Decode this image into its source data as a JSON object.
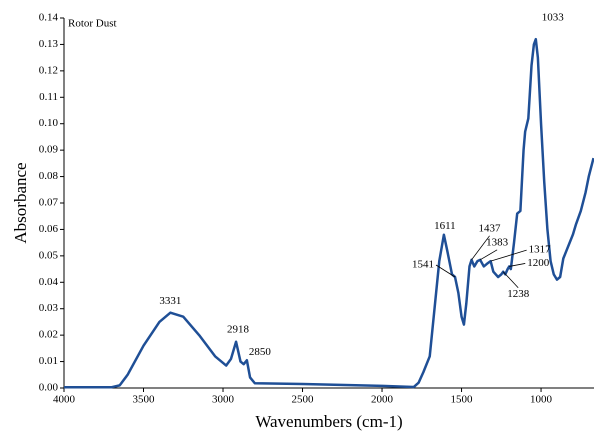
{
  "chart_data": {
    "type": "line",
    "title": "Rotor Dust",
    "x_label": "Wavenumbers (cm-1)",
    "y_label": "Absorbance",
    "xlim": [
      4000,
      667
    ],
    "ylim": [
      0,
      0.14
    ],
    "xticks": [
      4000,
      3500,
      3000,
      2500,
      2000,
      1500,
      1000
    ],
    "yticks": [
      {
        "value": 0,
        "label": "0.00"
      },
      {
        "value": 0.01,
        "label": "0.01"
      },
      {
        "value": 0.02,
        "label": "0.02"
      },
      {
        "value": 0.03,
        "label": "0.03"
      },
      {
        "value": 0.04,
        "label": "0.04"
      },
      {
        "value": 0.05,
        "label": "0.05"
      },
      {
        "value": 0.06,
        "label": "0.06"
      },
      {
        "value": 0.07,
        "label": "0.07"
      },
      {
        "value": 0.08,
        "label": "0.08"
      },
      {
        "value": 0.09,
        "label": "0.09"
      },
      {
        "value": 0.1,
        "label": "0.10"
      },
      {
        "value": 0.11,
        "label": "0.11"
      },
      {
        "value": 0.12,
        "label": "0.12"
      },
      {
        "value": 0.13,
        "label": "0.13"
      },
      {
        "value": 0.14,
        "label": "0.14"
      }
    ],
    "series": [
      {
        "color": "#1f4f96",
        "x": [
          4000,
          3700,
          3650,
          3600,
          3500,
          3400,
          3331,
          3250,
          3150,
          3050,
          2980,
          2950,
          2918,
          2890,
          2870,
          2850,
          2830,
          2800,
          2500,
          2000,
          1800,
          1770,
          1740,
          1700,
          1670,
          1640,
          1611,
          1590,
          1560,
          1541,
          1520,
          1500,
          1485,
          1470,
          1450,
          1437,
          1420,
          1400,
          1383,
          1360,
          1340,
          1317,
          1300,
          1270,
          1250,
          1238,
          1225,
          1210,
          1200,
          1190,
          1170,
          1150,
          1130,
          1110,
          1100,
          1080,
          1060,
          1045,
          1033,
          1020,
          1000,
          980,
          960,
          940,
          920,
          900,
          880,
          860,
          840,
          820,
          800,
          780,
          750,
          720,
          700,
          670
        ],
        "values": [
          0.0003,
          0.0003,
          0.001,
          0.005,
          0.016,
          0.025,
          0.0285,
          0.027,
          0.02,
          0.012,
          0.0085,
          0.011,
          0.0175,
          0.01,
          0.009,
          0.0105,
          0.004,
          0.0018,
          0.0015,
          0.0008,
          0.0004,
          0.002,
          0.006,
          0.012,
          0.03,
          0.048,
          0.058,
          0.052,
          0.043,
          0.042,
          0.036,
          0.027,
          0.024,
          0.032,
          0.046,
          0.0485,
          0.046,
          0.048,
          0.0485,
          0.046,
          0.047,
          0.048,
          0.044,
          0.042,
          0.043,
          0.044,
          0.043,
          0.045,
          0.046,
          0.045,
          0.055,
          0.066,
          0.067,
          0.09,
          0.097,
          0.102,
          0.122,
          0.13,
          0.132,
          0.125,
          0.1,
          0.078,
          0.06,
          0.048,
          0.043,
          0.041,
          0.042,
          0.049,
          0.052,
          0.055,
          0.058,
          0.062,
          0.067,
          0.074,
          0.08,
          0.087
        ]
      }
    ],
    "annotations": [
      {
        "text": "3331",
        "x": 3331,
        "y": 0.0285
      },
      {
        "text": "2918",
        "x": 2918,
        "y": 0.0175
      },
      {
        "text": "2850",
        "x": 2850,
        "y": 0.0105
      },
      {
        "text": "1611",
        "x": 1611,
        "y": 0.058
      },
      {
        "text": "1541",
        "x": 1541,
        "y": 0.042
      },
      {
        "text": "1437",
        "x": 1437,
        "y": 0.0485
      },
      {
        "text": "1383",
        "x": 1383,
        "y": 0.0485
      },
      {
        "text": "1317",
        "x": 1317,
        "y": 0.048
      },
      {
        "text": "1200",
        "x": 1200,
        "y": 0.046
      },
      {
        "text": "1238",
        "x": 1238,
        "y": 0.044
      },
      {
        "text": "1033",
        "x": 1033,
        "y": 0.132
      }
    ]
  }
}
